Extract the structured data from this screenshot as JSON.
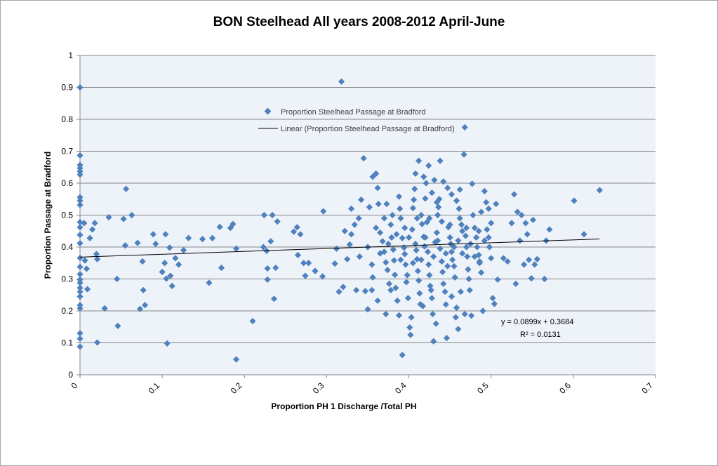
{
  "chart_data": {
    "type": "scatter",
    "title": "BON Steelhead All years 2008-2012 April-June",
    "xlabel": "Proportion PH 1 Discharge /Total PH",
    "ylabel": "Proportion Passage at Bradford",
    "xlim": [
      0,
      0.7
    ],
    "ylim": [
      0,
      1
    ],
    "x_ticks": [
      "0",
      "0.1",
      "0.2",
      "0.3",
      "0.4",
      "0.5",
      "0.6",
      "0.7"
    ],
    "y_ticks": [
      "0",
      "0.1",
      "0.2",
      "0.3",
      "0.4",
      "0.5",
      "0.6",
      "0.7",
      "0.8",
      "0.9",
      "1"
    ],
    "grid": true,
    "legend_position": "upper-center",
    "colors": {
      "marker": "#4f81bd",
      "trendline": "#000000",
      "plot_background": "#eef3fa"
    },
    "series": [
      {
        "name": "Proportion Steelhead Passage at Bradford",
        "points": [
          [
            0,
            0.9
          ],
          [
            0,
            0.687
          ],
          [
            0,
            0.657
          ],
          [
            0,
            0.647
          ],
          [
            0,
            0.637
          ],
          [
            0,
            0.627
          ],
          [
            0,
            0.556
          ],
          [
            0,
            0.545
          ],
          [
            0,
            0.532
          ],
          [
            0,
            0.478
          ],
          [
            0,
            0.462
          ],
          [
            0,
            0.438
          ],
          [
            0,
            0.412
          ],
          [
            0,
            0.366
          ],
          [
            0,
            0.338
          ],
          [
            0,
            0.315
          ],
          [
            0,
            0.298
          ],
          [
            0,
            0.288
          ],
          [
            0,
            0.272
          ],
          [
            0,
            0.26
          ],
          [
            0,
            0.245
          ],
          [
            0,
            0.218
          ],
          [
            0,
            0.208
          ],
          [
            0,
            0.13
          ],
          [
            0,
            0.113
          ],
          [
            0,
            0.088
          ],
          [
            0.005,
            0.475
          ],
          [
            0.006,
            0.358
          ],
          [
            0.008,
            0.332
          ],
          [
            0.009,
            0.268
          ],
          [
            0.012,
            0.428
          ],
          [
            0.015,
            0.455
          ],
          [
            0.018,
            0.475
          ],
          [
            0.02,
            0.378
          ],
          [
            0.021,
            0.362
          ],
          [
            0.021,
            0.101
          ],
          [
            0.03,
            0.208
          ],
          [
            0.035,
            0.493
          ],
          [
            0.045,
            0.3
          ],
          [
            0.046,
            0.153
          ],
          [
            0.053,
            0.488
          ],
          [
            0.055,
            0.405
          ],
          [
            0.056,
            0.582
          ],
          [
            0.063,
            0.5
          ],
          [
            0.07,
            0.413
          ],
          [
            0.073,
            0.206
          ],
          [
            0.076,
            0.355
          ],
          [
            0.077,
            0.265
          ],
          [
            0.079,
            0.218
          ],
          [
            0.089,
            0.44
          ],
          [
            0.092,
            0.41
          ],
          [
            0.1,
            0.322
          ],
          [
            0.103,
            0.35
          ],
          [
            0.104,
            0.44
          ],
          [
            0.105,
            0.301
          ],
          [
            0.106,
            0.098
          ],
          [
            0.109,
            0.398
          ],
          [
            0.11,
            0.31
          ],
          [
            0.112,
            0.278
          ],
          [
            0.116,
            0.365
          ],
          [
            0.12,
            0.345
          ],
          [
            0.126,
            0.39
          ],
          [
            0.132,
            0.428
          ],
          [
            0.149,
            0.425
          ],
          [
            0.157,
            0.288
          ],
          [
            0.161,
            0.428
          ],
          [
            0.17,
            0.463
          ],
          [
            0.172,
            0.335
          ],
          [
            0.183,
            0.46
          ],
          [
            0.186,
            0.472
          ],
          [
            0.19,
            0.395
          ],
          [
            0.19,
            0.048
          ],
          [
            0.21,
            0.168
          ],
          [
            0.223,
            0.4
          ],
          [
            0.224,
            0.5
          ],
          [
            0.227,
            0.388
          ],
          [
            0.228,
            0.333
          ],
          [
            0.228,
            0.298
          ],
          [
            0.232,
            0.418
          ],
          [
            0.234,
            0.5
          ],
          [
            0.236,
            0.238
          ],
          [
            0.238,
            0.335
          ],
          [
            0.24,
            0.48
          ],
          [
            0.26,
            0.448
          ],
          [
            0.264,
            0.462
          ],
          [
            0.265,
            0.375
          ],
          [
            0.268,
            0.44
          ],
          [
            0.272,
            0.35
          ],
          [
            0.274,
            0.31
          ],
          [
            0.278,
            0.35
          ],
          [
            0.286,
            0.325
          ],
          [
            0.295,
            0.308
          ],
          [
            0.296,
            0.512
          ],
          [
            0.31,
            0.348
          ],
          [
            0.312,
            0.395
          ],
          [
            0.315,
            0.26
          ],
          [
            0.318,
            0.918
          ],
          [
            0.32,
            0.275
          ],
          [
            0.322,
            0.45
          ],
          [
            0.325,
            0.362
          ],
          [
            0.328,
            0.408
          ],
          [
            0.33,
            0.52
          ],
          [
            0.334,
            0.47
          ],
          [
            0.336,
            0.265
          ],
          [
            0.339,
            0.49
          ],
          [
            0.342,
            0.548
          ],
          [
            0.345,
            0.678
          ],
          [
            0.347,
            0.262
          ],
          [
            0.35,
            0.205
          ],
          [
            0.352,
            0.525
          ],
          [
            0.356,
            0.305
          ],
          [
            0.36,
            0.63
          ],
          [
            0.362,
            0.585
          ],
          [
            0.363,
            0.535
          ],
          [
            0.365,
            0.445
          ],
          [
            0.368,
            0.418
          ],
          [
            0.37,
            0.385
          ],
          [
            0.372,
            0.352
          ],
          [
            0.374,
            0.328
          ],
          [
            0.376,
            0.285
          ],
          [
            0.378,
            0.47
          ],
          [
            0.379,
            0.43
          ],
          [
            0.381,
            0.392
          ],
          [
            0.382,
            0.358
          ],
          [
            0.383,
            0.313
          ],
          [
            0.384,
            0.272
          ],
          [
            0.386,
            0.232
          ],
          [
            0.388,
            0.186
          ],
          [
            0.389,
            0.52
          ],
          [
            0.39,
            0.49
          ],
          [
            0.392,
            0.428
          ],
          [
            0.394,
            0.398
          ],
          [
            0.395,
            0.378
          ],
          [
            0.396,
            0.345
          ],
          [
            0.398,
            0.312
          ],
          [
            0.399,
            0.24
          ],
          [
            0.401,
            0.148
          ],
          [
            0.402,
            0.125
          ],
          [
            0.404,
            0.455
          ],
          [
            0.405,
            0.522
          ],
          [
            0.407,
            0.582
          ],
          [
            0.408,
            0.41
          ],
          [
            0.409,
            0.39
          ],
          [
            0.41,
            0.362
          ],
          [
            0.411,
            0.325
          ],
          [
            0.412,
            0.295
          ],
          [
            0.413,
            0.255
          ],
          [
            0.414,
            0.221
          ],
          [
            0.415,
            0.5
          ],
          [
            0.416,
            0.472
          ],
          [
            0.418,
            0.432
          ],
          [
            0.419,
            0.402
          ],
          [
            0.42,
            0.552
          ],
          [
            0.421,
            0.6
          ],
          [
            0.422,
            0.478
          ],
          [
            0.423,
            0.385
          ],
          [
            0.424,
            0.345
          ],
          [
            0.425,
            0.312
          ],
          [
            0.426,
            0.278
          ],
          [
            0.428,
            0.24
          ],
          [
            0.429,
            0.19
          ],
          [
            0.43,
            0.105
          ],
          [
            0.432,
            0.415
          ],
          [
            0.434,
            0.445
          ],
          [
            0.435,
            0.5
          ],
          [
            0.436,
            0.525
          ],
          [
            0.437,
            0.55
          ],
          [
            0.438,
            0.395
          ],
          [
            0.44,
            0.355
          ],
          [
            0.441,
            0.322
          ],
          [
            0.442,
            0.285
          ],
          [
            0.444,
            0.26
          ],
          [
            0.445,
            0.22
          ],
          [
            0.446,
            0.115
          ],
          [
            0.448,
            0.462
          ],
          [
            0.45,
            0.43
          ],
          [
            0.451,
            0.41
          ],
          [
            0.452,
            0.385
          ],
          [
            0.453,
            0.36
          ],
          [
            0.455,
            0.34
          ],
          [
            0.456,
            0.305
          ],
          [
            0.458,
            0.21
          ],
          [
            0.46,
            0.143
          ],
          [
            0.461,
            0.52
          ],
          [
            0.462,
            0.49
          ],
          [
            0.464,
            0.47
          ],
          [
            0.465,
            0.45
          ],
          [
            0.467,
            0.69
          ],
          [
            0.468,
            0.775
          ],
          [
            0.469,
            0.435
          ],
          [
            0.47,
            0.4
          ],
          [
            0.471,
            0.37
          ],
          [
            0.472,
            0.33
          ],
          [
            0.473,
            0.3
          ],
          [
            0.474,
            0.265
          ],
          [
            0.476,
            0.185
          ],
          [
            0.477,
            0.598
          ],
          [
            0.478,
            0.5
          ],
          [
            0.48,
            0.46
          ],
          [
            0.482,
            0.43
          ],
          [
            0.483,
            0.4
          ],
          [
            0.485,
            0.375
          ],
          [
            0.486,
            0.355
          ],
          [
            0.488,
            0.32
          ],
          [
            0.49,
            0.2
          ],
          [
            0.492,
            0.575
          ],
          [
            0.494,
            0.54
          ],
          [
            0.495,
            0.455
          ],
          [
            0.497,
            0.43
          ],
          [
            0.498,
            0.4
          ],
          [
            0.5,
            0.365
          ],
          [
            0.502,
            0.24
          ],
          [
            0.504,
            0.222
          ],
          [
            0.506,
            0.535
          ],
          [
            0.508,
            0.298
          ],
          [
            0.5,
            0.475
          ],
          [
            0.33,
            0.44
          ],
          [
            0.34,
            0.37
          ],
          [
            0.35,
            0.4
          ],
          [
            0.355,
            0.345
          ],
          [
            0.36,
            0.46
          ],
          [
            0.365,
            0.38
          ],
          [
            0.37,
            0.49
          ],
          [
            0.375,
            0.41
          ],
          [
            0.38,
            0.5
          ],
          [
            0.385,
            0.44
          ],
          [
            0.39,
            0.36
          ],
          [
            0.395,
            0.46
          ],
          [
            0.4,
            0.43
          ],
          [
            0.405,
            0.35
          ],
          [
            0.41,
            0.49
          ],
          [
            0.415,
            0.36
          ],
          [
            0.42,
            0.43
          ],
          [
            0.425,
            0.49
          ],
          [
            0.43,
            0.37
          ],
          [
            0.435,
            0.42
          ],
          [
            0.44,
            0.48
          ],
          [
            0.445,
            0.38
          ],
          [
            0.45,
            0.47
          ],
          [
            0.455,
            0.4
          ],
          [
            0.46,
            0.42
          ],
          [
            0.465,
            0.38
          ],
          [
            0.47,
            0.46
          ],
          [
            0.475,
            0.41
          ],
          [
            0.48,
            0.37
          ],
          [
            0.485,
            0.45
          ],
          [
            0.355,
            0.265
          ],
          [
            0.362,
            0.232
          ],
          [
            0.372,
            0.19
          ],
          [
            0.378,
            0.265
          ],
          [
            0.392,
            0.062
          ],
          [
            0.397,
            0.29
          ],
          [
            0.403,
            0.18
          ],
          [
            0.417,
            0.215
          ],
          [
            0.427,
            0.265
          ],
          [
            0.433,
            0.16
          ],
          [
            0.447,
            0.34
          ],
          [
            0.452,
            0.245
          ],
          [
            0.457,
            0.18
          ],
          [
            0.463,
            0.26
          ],
          [
            0.468,
            0.19
          ],
          [
            0.486,
            0.35
          ],
          [
            0.492,
            0.42
          ],
          [
            0.356,
            0.62
          ],
          [
            0.373,
            0.535
          ],
          [
            0.388,
            0.558
          ],
          [
            0.406,
            0.548
          ],
          [
            0.408,
            0.63
          ],
          [
            0.412,
            0.67
          ],
          [
            0.418,
            0.62
          ],
          [
            0.424,
            0.655
          ],
          [
            0.428,
            0.57
          ],
          [
            0.431,
            0.61
          ],
          [
            0.434,
            0.54
          ],
          [
            0.438,
            0.67
          ],
          [
            0.442,
            0.605
          ],
          [
            0.447,
            0.585
          ],
          [
            0.452,
            0.565
          ],
          [
            0.458,
            0.545
          ],
          [
            0.462,
            0.58
          ],
          [
            0.488,
            0.51
          ],
          [
            0.497,
            0.52
          ],
          [
            0.515,
            0.365
          ],
          [
            0.52,
            0.355
          ],
          [
            0.525,
            0.475
          ],
          [
            0.528,
            0.565
          ],
          [
            0.53,
            0.285
          ],
          [
            0.532,
            0.51
          ],
          [
            0.535,
            0.42
          ],
          [
            0.537,
            0.5
          ],
          [
            0.54,
            0.345
          ],
          [
            0.542,
            0.475
          ],
          [
            0.544,
            0.44
          ],
          [
            0.546,
            0.36
          ],
          [
            0.549,
            0.302
          ],
          [
            0.551,
            0.485
          ],
          [
            0.553,
            0.345
          ],
          [
            0.556,
            0.362
          ],
          [
            0.565,
            0.3
          ],
          [
            0.567,
            0.42
          ],
          [
            0.571,
            0.455
          ],
          [
            0.601,
            0.545
          ],
          [
            0.613,
            0.44
          ],
          [
            0.632,
            0.578
          ]
        ]
      }
    ],
    "trendline": {
      "name": "Linear (Proportion Steelhead Passage at Bradford)",
      "slope": 0.0899,
      "intercept": 0.3684,
      "x_range": [
        0,
        0.632
      ],
      "equation_label": "y = 0.0899x + 0.3684",
      "r2_label": "R² = 0.0131"
    }
  }
}
